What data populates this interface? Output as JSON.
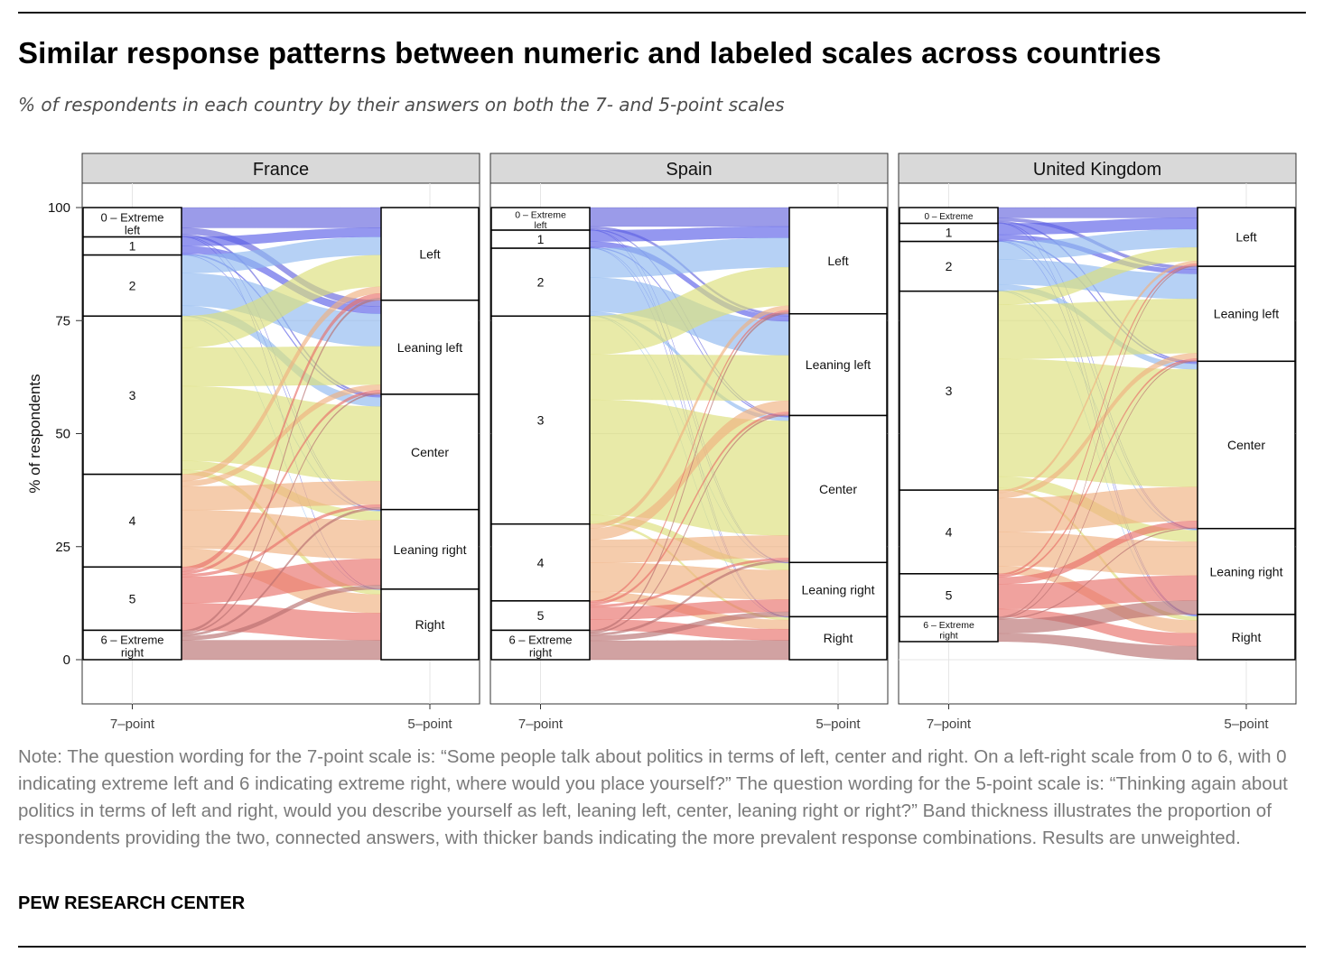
{
  "title": "Similar response patterns between numeric and labeled scales across countries",
  "subtitle": "% of respondents in each country by their answers on both the 7- and 5-point scales",
  "note": "Note: The question wording for the 7-point scale is: “Some people talk about politics in terms of left, center and right. On a left-right scale from 0 to 6, with 0 indicating extreme left and 6 indicating extreme right, where would you place yourself?” The question wording for the 5-point scale is: “Thinking again about politics in terms of left and right, would you describe yourself as left, leaning left, center, leaning right or right?” Band thickness illustrates the proportion of respondents providing the two, connected answers, with thicker bands indicating the more prevalent response combinations. Results are unweighted.",
  "source": "PEW RESEARCH CENTER",
  "colors": {
    "seven_point": [
      "#6666dd",
      "#5a60e8",
      "#8fb8f0",
      "#dcde7a",
      "#f0b080",
      "#e8706a",
      "#b87070"
    ],
    "panel_strip": "#d9d9d9",
    "grid": "#e6e6e6"
  },
  "chart_data": {
    "type": "alluvial",
    "ylabel": "% of respondents",
    "ylim": [
      0,
      100
    ],
    "yticks": [
      0,
      25,
      50,
      75,
      100
    ],
    "axis_left_label": "7–point\nendpoints labeled",
    "axis_right_label": "5–point\nfully labeled",
    "seven_point_categories": [
      "0 – Extreme left",
      "1",
      "2",
      "3",
      "4",
      "5",
      "6 – Extreme right"
    ],
    "five_point_categories": [
      "Left",
      "Leaning left",
      "Center",
      "Leaning right",
      "Right"
    ],
    "panels": [
      {
        "country": "France",
        "seven_point_pct": [
          6.5,
          4,
          13.5,
          35,
          20.5,
          14,
          6.5
        ],
        "five_point_pct": [
          20.5,
          20.8,
          25.5,
          17.6,
          15.6
        ],
        "flows": [
          [
            4.5,
            1.4,
            0.4,
            0.1,
            0.1
          ],
          [
            2.0,
            1.6,
            0.3,
            0.1,
            0.0
          ],
          [
            4.0,
            7.2,
            2.0,
            0.2,
            0.1
          ],
          [
            7.0,
            8.5,
            16.5,
            2.0,
            1.0
          ],
          [
            1.5,
            1.2,
            5.2,
            8.5,
            4.1
          ],
          [
            1.0,
            0.6,
            0.6,
            5.8,
            6.0
          ],
          [
            0.5,
            0.3,
            0.5,
            0.9,
            4.3
          ]
        ]
      },
      {
        "country": "Spain",
        "seven_point_pct": [
          5,
          4,
          15,
          46,
          17,
          6.5,
          6.5
        ],
        "five_point_pct": [
          23.5,
          22.5,
          32.5,
          12,
          9.5
        ],
        "flows": [
          [
            4.2,
            0.5,
            0.2,
            0.05,
            0.05
          ],
          [
            2.5,
            1.2,
            0.2,
            0.05,
            0.05
          ],
          [
            6.5,
            7.5,
            0.8,
            0.1,
            0.1
          ],
          [
            8.5,
            10.0,
            25.5,
            1.5,
            0.5
          ],
          [
            1.0,
            2.5,
            5.0,
            6.5,
            2.0
          ],
          [
            0.4,
            0.5,
            0.5,
            2.7,
            2.4
          ],
          [
            0.4,
            0.3,
            0.5,
            1.1,
            4.2
          ]
        ]
      },
      {
        "country": "United Kingdom",
        "seven_point_pct": [
          3.5,
          4,
          11,
          44,
          18.5,
          9.5,
          5.5
        ],
        "five_point_pct": [
          13,
          21,
          37,
          19,
          10
        ],
        "flows": [
          [
            2.3,
            0.7,
            0.3,
            0.1,
            0.1
          ],
          [
            2.5,
            1.0,
            0.3,
            0.1,
            0.1
          ],
          [
            4.0,
            5.5,
            1.2,
            0.2,
            0.1
          ],
          [
            3.0,
            12.0,
            26.0,
            2.5,
            0.5
          ],
          [
            0.6,
            1.2,
            7.5,
            7.5,
            1.7
          ],
          [
            0.4,
            0.4,
            1.5,
            5.5,
            1.7
          ],
          [
            0.2,
            0.2,
            0.2,
            3.1,
            1.8
          ]
        ]
      }
    ]
  }
}
